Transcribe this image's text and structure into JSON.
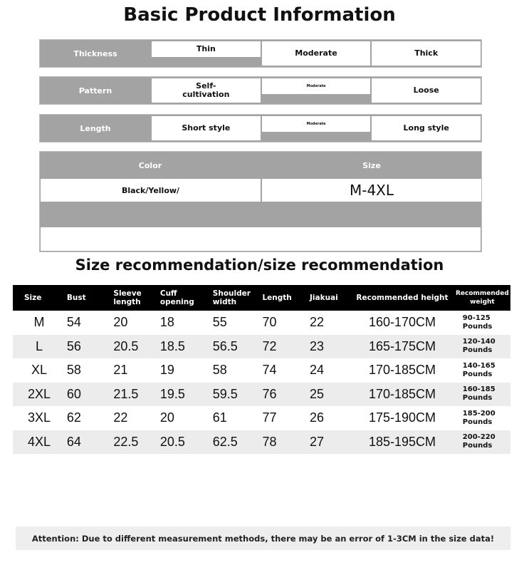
{
  "title": "Basic Product Information",
  "features": [
    {
      "label": "Thickness",
      "options": [
        "Thin",
        "Moderate",
        "Thick"
      ],
      "selected": 0
    },
    {
      "label": "Pattern",
      "options": [
        "Self-\ncultivation",
        "Moderate",
        "Loose"
      ],
      "selected": 1
    },
    {
      "label": "Length",
      "options": [
        "Short style",
        "Moderate",
        "Long style"
      ],
      "selected": 1
    }
  ],
  "color_size": {
    "color_label": "Color",
    "size_label": "Size",
    "color_value": "Black/Yellow/",
    "size_value": "M-4XL"
  },
  "size_title": "Size recommendation/size recommendation",
  "table": {
    "headers": [
      "Size",
      "Bust",
      "Sleeve length",
      "Cuff opening",
      "Shoulder width",
      "Length",
      "Jiakuai",
      "Recommended height",
      "Recommended weight"
    ],
    "rows": [
      [
        "M",
        "54",
        "20",
        "18",
        "55",
        "70",
        "22",
        "160-170CM",
        "90-125 Pounds"
      ],
      [
        "L",
        "56",
        "20.5",
        "18.5",
        "56.5",
        "72",
        "23",
        "165-175CM",
        "120-140 Pounds"
      ],
      [
        "XL",
        "58",
        "21",
        "19",
        "58",
        "74",
        "24",
        "170-185CM",
        "140-165 Pounds"
      ],
      [
        "2XL",
        "60",
        "21.5",
        "19.5",
        "59.5",
        "76",
        "25",
        "170-185CM",
        "160-185 Pounds"
      ],
      [
        "3XL",
        "62",
        "22",
        "20",
        "61",
        "77",
        "26",
        "175-190CM",
        "185-200 Pounds"
      ],
      [
        "4XL",
        "64",
        "22.5",
        "20.5",
        "62.5",
        "78",
        "27",
        "185-195CM",
        "200-220 Pounds"
      ]
    ]
  },
  "attention": "Attention: Due to different measurement methods, there may be an error of 1-3CM in the size data!"
}
